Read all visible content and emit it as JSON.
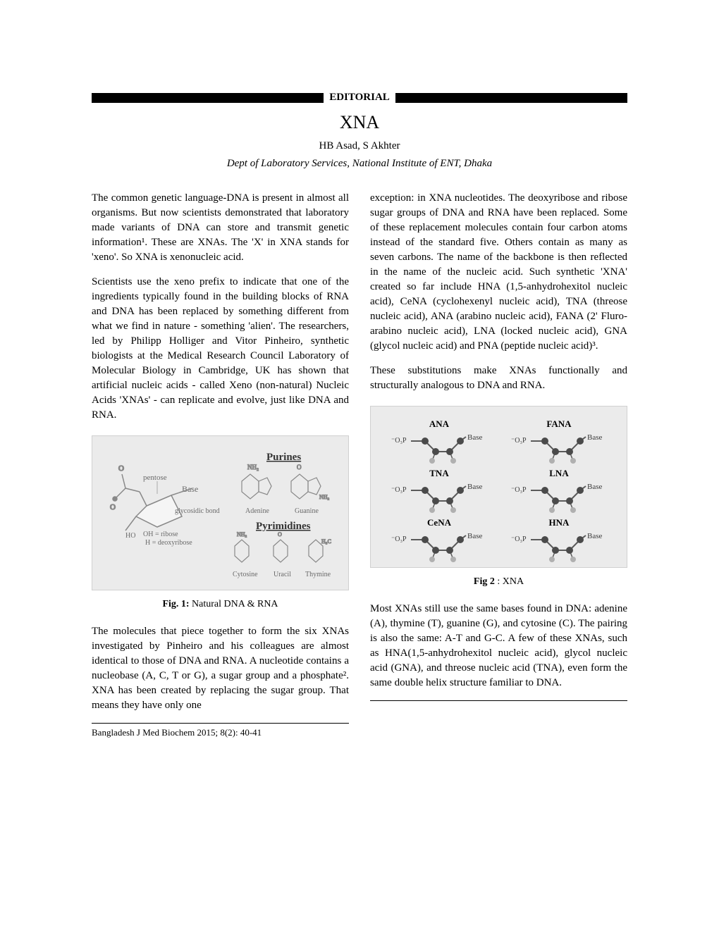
{
  "header": {
    "editorial_label": "EDITORIAL",
    "title": "XNA",
    "authors": "HB Asad, S Akhter",
    "affiliation": "Dept of Laboratory Services, National Institute of ENT, Dhaka"
  },
  "left_column": {
    "para1": "The common genetic language-DNA is present in almost all organisms. But now scientists demonstrated that laboratory made variants of DNA can store and transmit genetic information¹. These are XNAs. The 'X' in XNA stands for 'xeno'. So XNA is xenonucleic acid.",
    "para2": "Scientists use the xeno prefix to indicate that one of the ingredients typically found in the building blocks of RNA and DNA has been replaced by something different from what we find in nature - something 'alien'. The researchers, led by Philipp Holliger and Vitor Pinheiro, synthetic biologists at the Medical Research Council Laboratory of Molecular Biology in Cambridge, UK has shown that artificial nucleic acids - called Xeno (non-natural) Nucleic Acids 'XNAs' - can replicate and evolve, just like DNA and RNA.",
    "fig1_caption_bold": "Fig. 1:",
    "fig1_caption_text": "  Natural DNA & RNA",
    "para3": "The molecules that piece together to form the six XNAs investigated by Pinheiro and his colleagues are almost identical to those of DNA and RNA. A nucleotide contains a nucleobase (A, C, T or G), a sugar group and a phosphate². XNA has been created by replacing the sugar group. That means they have only one"
  },
  "right_column": {
    "para1": "exception: in XNA nucleotides. The deoxyribose and ribose sugar groups of DNA and RNA have been replaced. Some of these replacement molecules contain four carbon atoms instead of the standard five. Others contain as many as seven carbons. The name of the backbone is then reflected in the name of the nucleic acid. Such synthetic 'XNA' created so far include HNA (1,5-anhydrohexitol nucleic acid), CeNA (cyclohexenyl nucleic acid), TNA (threose nucleic acid), ANA (arabino nucleic acid), FANA (2' Fluro-arabino nucleic acid), LNA (locked nucleic acid), GNA (glycol nucleic acid) and PNA (peptide nucleic acid)³.",
    "para2": "These substitutions make XNAs functionally and structurally analogous to DNA and RNA.",
    "fig2_caption_bold": "Fig 2",
    "fig2_caption_text": " : XNA",
    "para3": "Most XNAs still use the same bases found in DNA: adenine (A), thymine (T), guanine (G), and cytosine (C). The pairing is also the same: A-T and G-C. A few of these XNAs, such as HNA(1,5-anhydrohexitol nucleic acid), glycol nucleic acid (GNA), and threose nucleic acid (TNA), even form the same double helix structure familiar to DNA."
  },
  "figure1": {
    "type": "chemical_diagram",
    "background_color": "#ebebeb",
    "title_purines": "Purines",
    "title_pyrimidines": "Pyrimidines",
    "labels": {
      "pentose": "pentose",
      "base": "Base",
      "glycosidic": "glycosidic bond",
      "oh_ribose": "OH = ribose",
      "h_deoxy": "H = deoxyribose",
      "adenine": "Adenine",
      "guanine": "Guanine",
      "cytosine": "Cytosine",
      "uracil": "Uracil",
      "thymine": "Thymine"
    },
    "colors": {
      "text": "#6a6a6a",
      "structure": "#888888"
    }
  },
  "figure2": {
    "type": "chemical_diagram",
    "background_color": "#e8e8e8",
    "structures": [
      "ANA",
      "FANA",
      "TNA",
      "LNA",
      "CeNA",
      "HNA"
    ],
    "label_base": "Base",
    "label_phosphate": "⁻O₃P",
    "colors": {
      "text_title": "#000000",
      "text_label": "#3a3a3a",
      "node_dark": "#4a4a4a",
      "node_light": "#b0b0b0",
      "bond": "#5a5a5a"
    }
  },
  "footer": {
    "citation": "Bangladesh J Med Biochem 2015; 8(2): 40-41"
  }
}
